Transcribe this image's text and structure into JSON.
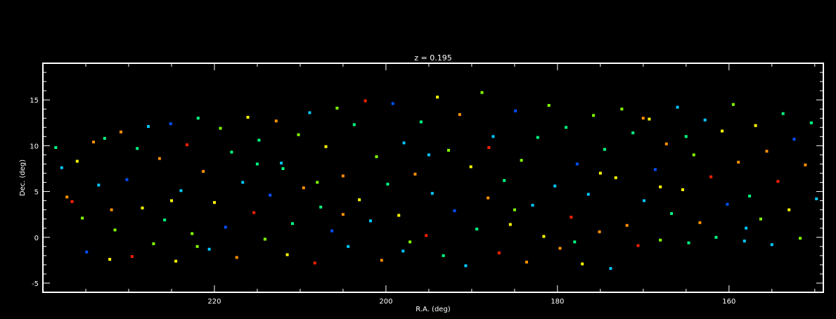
{
  "chart_data": {
    "type": "scatter",
    "title": "z = 0.195",
    "xlabel": "R.A. (deg)",
    "ylabel": "Dec. (deg)",
    "x_reversed": true,
    "xlim": [
      240,
      149
    ],
    "ylim": [
      -6,
      19
    ],
    "x_major_ticks": [
      220,
      200,
      180,
      160
    ],
    "y_major_ticks": [
      -5,
      0,
      5,
      10,
      15
    ],
    "x_minor_step": 5,
    "y_minor_step": 1,
    "grid": false,
    "legend": "none",
    "background": "#000000",
    "axis_color": "#ffffff",
    "colormap": [
      "#2a00c8",
      "#0050ff",
      "#00c8ff",
      "#00ff80",
      "#80ff00",
      "#ffff00",
      "#ff9000",
      "#ff2000"
    ],
    "series": [
      {
        "points_note": "",
        "points": [
          [
            238.5,
            9.8,
            3
          ],
          [
            237.8,
            7.6,
            2
          ],
          [
            237.2,
            4.4,
            6
          ],
          [
            236.6,
            3.9,
            7
          ],
          [
            236.0,
            8.3,
            5
          ],
          [
            235.4,
            2.1,
            4
          ],
          [
            234.9,
            -1.6,
            1
          ],
          [
            234.1,
            10.4,
            6
          ],
          [
            233.5,
            5.7,
            2
          ],
          [
            232.8,
            10.8,
            3
          ],
          [
            232.2,
            -2.4,
            5
          ],
          [
            231.6,
            0.8,
            4
          ],
          [
            230.9,
            11.5,
            6
          ],
          [
            230.2,
            6.3,
            1
          ],
          [
            229.6,
            -2.1,
            7
          ],
          [
            229.0,
            9.7,
            3
          ],
          [
            228.4,
            3.2,
            5
          ],
          [
            227.7,
            12.1,
            2
          ],
          [
            227.1,
            -0.7,
            4
          ],
          [
            226.4,
            8.6,
            6
          ],
          [
            225.8,
            1.9,
            3
          ],
          [
            225.1,
            12.4,
            1
          ],
          [
            224.5,
            -2.6,
            5
          ],
          [
            223.9,
            5.1,
            2
          ],
          [
            223.2,
            10.1,
            7
          ],
          [
            222.6,
            0.4,
            4
          ],
          [
            221.9,
            13.0,
            3
          ],
          [
            221.3,
            7.2,
            6
          ],
          [
            220.6,
            -1.3,
            2
          ],
          [
            220.0,
            3.8,
            5
          ],
          [
            219.3,
            11.9,
            4
          ],
          [
            218.7,
            1.1,
            1
          ],
          [
            218.0,
            9.3,
            3
          ],
          [
            217.4,
            -2.2,
            6
          ],
          [
            216.7,
            6.0,
            2
          ],
          [
            216.1,
            13.1,
            5
          ],
          [
            215.4,
            2.7,
            7
          ],
          [
            214.8,
            10.6,
            3
          ],
          [
            214.1,
            -0.2,
            4
          ],
          [
            213.5,
            4.6,
            1
          ],
          [
            212.8,
            12.7,
            6
          ],
          [
            212.2,
            8.1,
            2
          ],
          [
            211.5,
            -1.9,
            5
          ],
          [
            210.9,
            1.5,
            3
          ],
          [
            210.2,
            11.2,
            4
          ],
          [
            209.6,
            5.4,
            6
          ],
          [
            208.9,
            13.6,
            2
          ],
          [
            208.3,
            -2.8,
            7
          ],
          [
            207.6,
            3.3,
            3
          ],
          [
            207.0,
            9.9,
            5
          ],
          [
            206.3,
            0.7,
            1
          ],
          [
            205.7,
            14.1,
            4
          ],
          [
            205.0,
            6.7,
            6
          ],
          [
            204.4,
            -1.0,
            2
          ],
          [
            203.7,
            12.3,
            3
          ],
          [
            203.1,
            4.1,
            5
          ],
          [
            202.4,
            14.9,
            7
          ],
          [
            201.8,
            1.8,
            2
          ],
          [
            201.1,
            8.8,
            4
          ],
          [
            200.5,
            -2.5,
            6
          ],
          [
            199.8,
            5.8,
            3
          ],
          [
            199.2,
            14.6,
            1
          ],
          [
            198.5,
            2.4,
            5
          ],
          [
            197.9,
            10.3,
            2
          ],
          [
            197.2,
            -0.5,
            4
          ],
          [
            196.6,
            6.9,
            6
          ],
          [
            195.9,
            12.6,
            3
          ],
          [
            195.3,
            0.2,
            7
          ],
          [
            194.6,
            4.8,
            2
          ],
          [
            194.0,
            15.3,
            5
          ],
          [
            193.3,
            -2.0,
            3
          ],
          [
            192.7,
            9.5,
            4
          ],
          [
            192.0,
            2.9,
            1
          ],
          [
            191.4,
            13.4,
            6
          ],
          [
            190.7,
            -3.1,
            2
          ],
          [
            190.1,
            7.7,
            5
          ],
          [
            189.4,
            0.9,
            3
          ],
          [
            188.8,
            15.8,
            4
          ],
          [
            188.1,
            4.3,
            6
          ],
          [
            187.5,
            11.0,
            2
          ],
          [
            186.8,
            -1.7,
            7
          ],
          [
            186.2,
            6.2,
            3
          ],
          [
            185.5,
            1.4,
            5
          ],
          [
            184.9,
            13.8,
            1
          ],
          [
            184.2,
            8.4,
            4
          ],
          [
            183.6,
            -2.7,
            6
          ],
          [
            182.9,
            3.5,
            2
          ],
          [
            182.3,
            10.9,
            3
          ],
          [
            181.6,
            0.1,
            5
          ],
          [
            181.0,
            14.4,
            4
          ],
          [
            180.3,
            5.6,
            2
          ],
          [
            179.7,
            -1.2,
            6
          ],
          [
            179.0,
            12.0,
            3
          ],
          [
            178.4,
            2.2,
            7
          ],
          [
            177.7,
            8.0,
            1
          ],
          [
            177.1,
            -2.9,
            5
          ],
          [
            176.4,
            4.7,
            2
          ],
          [
            175.8,
            13.3,
            4
          ],
          [
            175.1,
            0.6,
            6
          ],
          [
            174.5,
            9.6,
            3
          ],
          [
            173.8,
            -3.4,
            2
          ],
          [
            173.2,
            6.5,
            5
          ],
          [
            172.5,
            14.0,
            4
          ],
          [
            171.9,
            1.3,
            6
          ],
          [
            171.2,
            11.4,
            3
          ],
          [
            170.6,
            -0.9,
            7
          ],
          [
            169.9,
            4.0,
            2
          ],
          [
            169.3,
            12.9,
            5
          ],
          [
            168.6,
            7.4,
            1
          ],
          [
            168.0,
            -0.3,
            4
          ],
          [
            167.3,
            10.2,
            6
          ],
          [
            166.7,
            2.6,
            3
          ],
          [
            166.0,
            14.2,
            2
          ],
          [
            165.4,
            5.2,
            5
          ],
          [
            164.7,
            -0.6,
            3
          ],
          [
            164.1,
            9.0,
            4
          ],
          [
            163.4,
            1.6,
            6
          ],
          [
            162.8,
            12.8,
            2
          ],
          [
            162.1,
            6.6,
            7
          ],
          [
            161.5,
            0.0,
            3
          ],
          [
            160.8,
            11.6,
            5
          ],
          [
            160.2,
            3.6,
            1
          ],
          [
            159.5,
            14.5,
            4
          ],
          [
            158.9,
            8.2,
            6
          ],
          [
            158.2,
            -0.4,
            2
          ],
          [
            157.6,
            4.5,
            3
          ],
          [
            156.9,
            12.2,
            5
          ],
          [
            156.3,
            2.0,
            4
          ],
          [
            155.6,
            9.4,
            6
          ],
          [
            155.0,
            -0.8,
            2
          ],
          [
            154.3,
            6.1,
            7
          ],
          [
            153.7,
            13.5,
            3
          ],
          [
            153.0,
            3.0,
            5
          ],
          [
            152.4,
            10.7,
            1
          ],
          [
            151.7,
            -0.1,
            4
          ],
          [
            151.1,
            7.9,
            6
          ],
          [
            150.4,
            12.5,
            3
          ],
          [
            149.8,
            4.2,
            2
          ],
          [
            225.0,
            4.0,
            5
          ],
          [
            215.0,
            8.0,
            3
          ],
          [
            205.0,
            2.5,
            6
          ],
          [
            195.0,
            9.0,
            2
          ],
          [
            185.0,
            3.0,
            4
          ],
          [
            175.0,
            7.0,
            5
          ],
          [
            165.0,
            11.0,
            3
          ],
          [
            170.0,
            13.0,
            6
          ],
          [
            208.0,
            6.0,
            4
          ],
          [
            198.0,
            -1.5,
            2
          ],
          [
            188.0,
            9.8,
            7
          ],
          [
            178.0,
            -0.5,
            3
          ],
          [
            168.0,
            5.5,
            5
          ],
          [
            158.0,
            1.0,
            2
          ],
          [
            232.0,
            3.0,
            6
          ],
          [
            222.0,
            -1.0,
            4
          ],
          [
            212.0,
            7.5,
            3
          ]
        ]
      }
    ]
  }
}
